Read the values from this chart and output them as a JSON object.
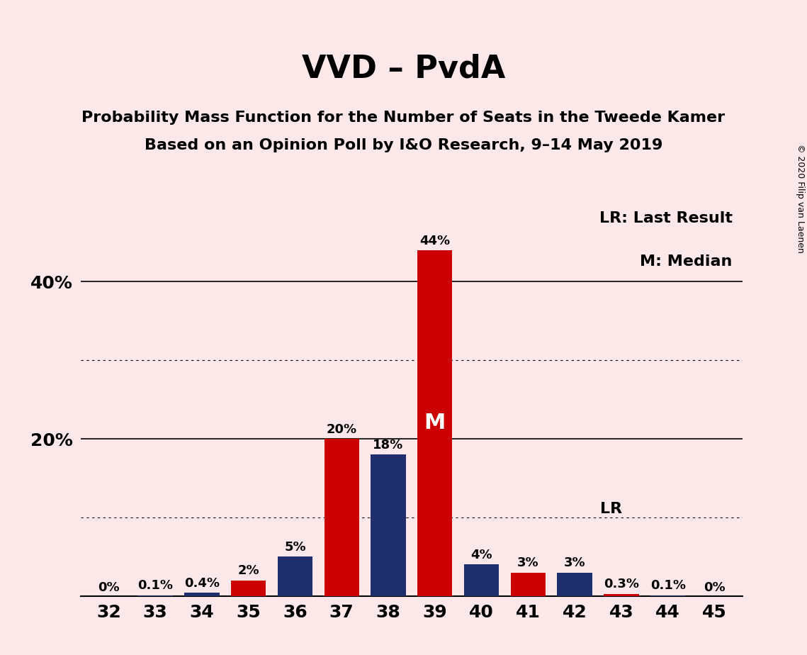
{
  "title": "VVD – PvdA",
  "subtitle1": "Probability Mass Function for the Number of Seats in the Tweede Kamer",
  "subtitle2": "Based on an Opinion Poll by I&O Research, 9–14 May 2019",
  "copyright": "© 2020 Filip van Laenen",
  "legend_lr": "LR: Last Result",
  "legend_m": "M: Median",
  "seats": [
    32,
    33,
    34,
    35,
    36,
    37,
    38,
    39,
    40,
    41,
    42,
    43,
    44,
    45
  ],
  "probabilities": [
    0.0,
    0.1,
    0.4,
    2.0,
    5.0,
    20.0,
    18.0,
    44.0,
    4.0,
    3.0,
    3.0,
    0.3,
    0.1,
    0.0
  ],
  "bar_colors": [
    "#cc0000",
    "#1f2f6e",
    "#1f2f6e",
    "#cc0000",
    "#1f2f6e",
    "#cc0000",
    "#1f2f6e",
    "#cc0000",
    "#1f2f6e",
    "#cc0000",
    "#1f2f6e",
    "#cc0000",
    "#1f2f6e",
    "#cc0000"
  ],
  "labels": [
    "0%",
    "0.1%",
    "0.4%",
    "2%",
    "5%",
    "20%",
    "18%",
    "44%",
    "4%",
    "3%",
    "3%",
    "0.3%",
    "0.1%",
    "0%"
  ],
  "show_label_zero": [
    true,
    true,
    true,
    true,
    true,
    true,
    true,
    true,
    true,
    true,
    true,
    true,
    true,
    true
  ],
  "median_seat": 39,
  "lr_seat": 42,
  "lr_value": 10.0,
  "background_color": "#fce8e8",
  "ylim": [
    0,
    50
  ],
  "solid_yticks": [
    20,
    40
  ],
  "dotted_yticks": [
    10,
    30
  ],
  "bar_width": 0.75,
  "title_fontsize": 32,
  "subtitle_fontsize": 16,
  "label_fontsize": 13,
  "axis_fontsize": 18,
  "legend_fontsize": 16,
  "copyright_fontsize": 9,
  "median_label_fontsize": 22,
  "lr_label_fontsize": 16
}
